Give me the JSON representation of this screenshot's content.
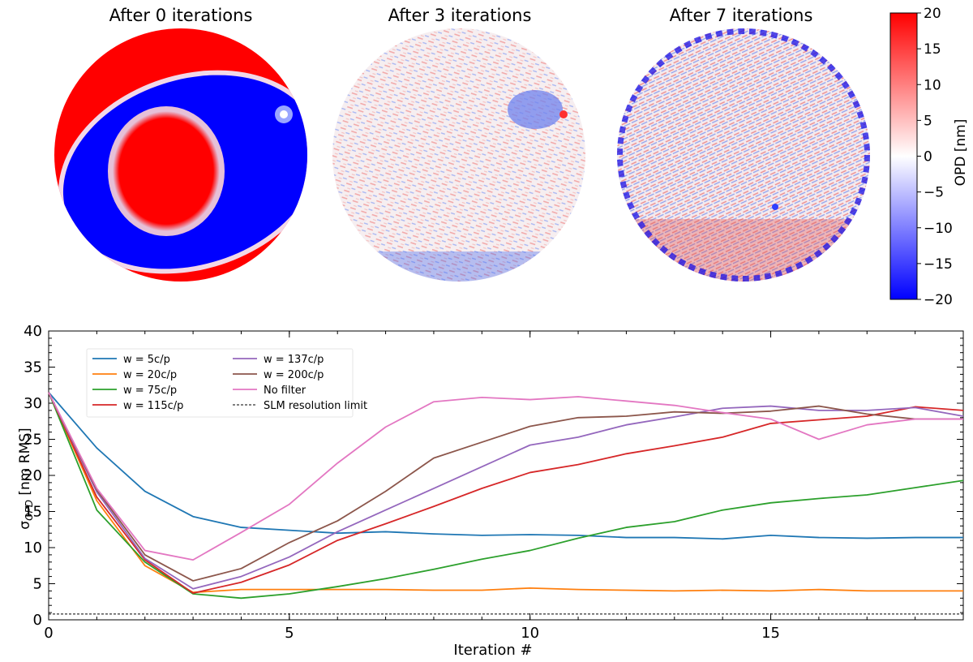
{
  "chart_data": [
    {
      "type": "heatmap",
      "panels": [
        {
          "title": "After 0 iterations",
          "pattern": "ring"
        },
        {
          "title": "After 3 iterations",
          "pattern": "noise-low"
        },
        {
          "title": "After 7 iterations",
          "pattern": "noise-high"
        }
      ],
      "colorbar": {
        "label": "OPD [nm]",
        "range": [
          -20,
          20
        ],
        "ticks": [
          20,
          15,
          10,
          5,
          0,
          -5,
          -10,
          -15,
          -20
        ],
        "colors": {
          "low": "#0000ff",
          "mid": "#ffffff",
          "high": "#ff0000"
        }
      }
    },
    {
      "type": "line",
      "xlabel": "Iteration #",
      "ylabel": "σ_OPD [nm RMS]",
      "xlim": [
        0,
        19
      ],
      "ylim": [
        0,
        40
      ],
      "xticks": [
        0,
        5,
        10,
        15
      ],
      "yticks": [
        0,
        5,
        10,
        15,
        20,
        25,
        30,
        35,
        40
      ],
      "x": [
        0,
        1,
        2,
        3,
        4,
        5,
        6,
        7,
        8,
        9,
        10,
        11,
        12,
        13,
        14,
        15,
        16,
        17,
        18,
        19
      ],
      "series": [
        {
          "name": "w = 5c/p",
          "color": "#1f77b4",
          "values": [
            31.5,
            23.8,
            17.8,
            14.3,
            12.8,
            12.4,
            12.0,
            12.2,
            11.9,
            11.7,
            11.8,
            11.7,
            11.4,
            11.4,
            11.2,
            11.7,
            11.4,
            11.3,
            11.4,
            11.4
          ]
        },
        {
          "name": "w = 20c/p",
          "color": "#ff7f0e",
          "values": [
            31.5,
            16.5,
            7.5,
            3.8,
            4.2,
            4.2,
            4.2,
            4.2,
            4.1,
            4.1,
            4.4,
            4.2,
            4.1,
            4.0,
            4.1,
            4.0,
            4.2,
            4.0,
            4.0,
            4.0
          ]
        },
        {
          "name": "w = 75c/p",
          "color": "#2ca02c",
          "values": [
            31.5,
            15.2,
            8.0,
            3.6,
            3.0,
            3.6,
            4.6,
            5.7,
            7.0,
            8.4,
            9.6,
            11.3,
            12.8,
            13.6,
            15.2,
            16.2,
            16.8,
            17.3,
            18.3,
            19.3
          ]
        },
        {
          "name": "w = 115c/p",
          "color": "#d62728",
          "values": [
            31.5,
            17.0,
            8.3,
            3.7,
            5.2,
            7.6,
            11.0,
            13.3,
            15.7,
            18.2,
            20.4,
            21.5,
            23.0,
            24.1,
            25.3,
            27.2,
            27.7,
            28.2,
            29.5,
            29.0
          ]
        },
        {
          "name": "w = 137c/p",
          "color": "#9467bd",
          "values": [
            31.5,
            17.7,
            8.5,
            4.3,
            6.0,
            8.7,
            12.2,
            15.2,
            18.2,
            21.2,
            24.2,
            25.3,
            27.0,
            28.1,
            29.3,
            29.6,
            29.0,
            29.0,
            29.4,
            28.2
          ]
        },
        {
          "name": "w = 200c/p",
          "color": "#8c564b",
          "values": [
            31.5,
            18.0,
            9.0,
            5.4,
            7.1,
            10.7,
            13.7,
            17.8,
            22.4,
            24.6,
            26.8,
            28.0,
            28.2,
            28.8,
            28.6,
            28.9,
            29.6,
            28.5,
            27.8,
            27.8
          ]
        },
        {
          "name": "No filter",
          "color": "#e377c2",
          "values": [
            31.5,
            18.2,
            9.6,
            8.3,
            12.1,
            16.0,
            21.7,
            26.7,
            30.2,
            30.8,
            30.5,
            30.9,
            30.3,
            29.7,
            28.7,
            27.8,
            25.0,
            27.0,
            27.8,
            27.8
          ]
        }
      ],
      "reference": {
        "name": "SLM resolution limit",
        "value": 0.8,
        "color": "#000000",
        "style": "dashed"
      }
    }
  ]
}
